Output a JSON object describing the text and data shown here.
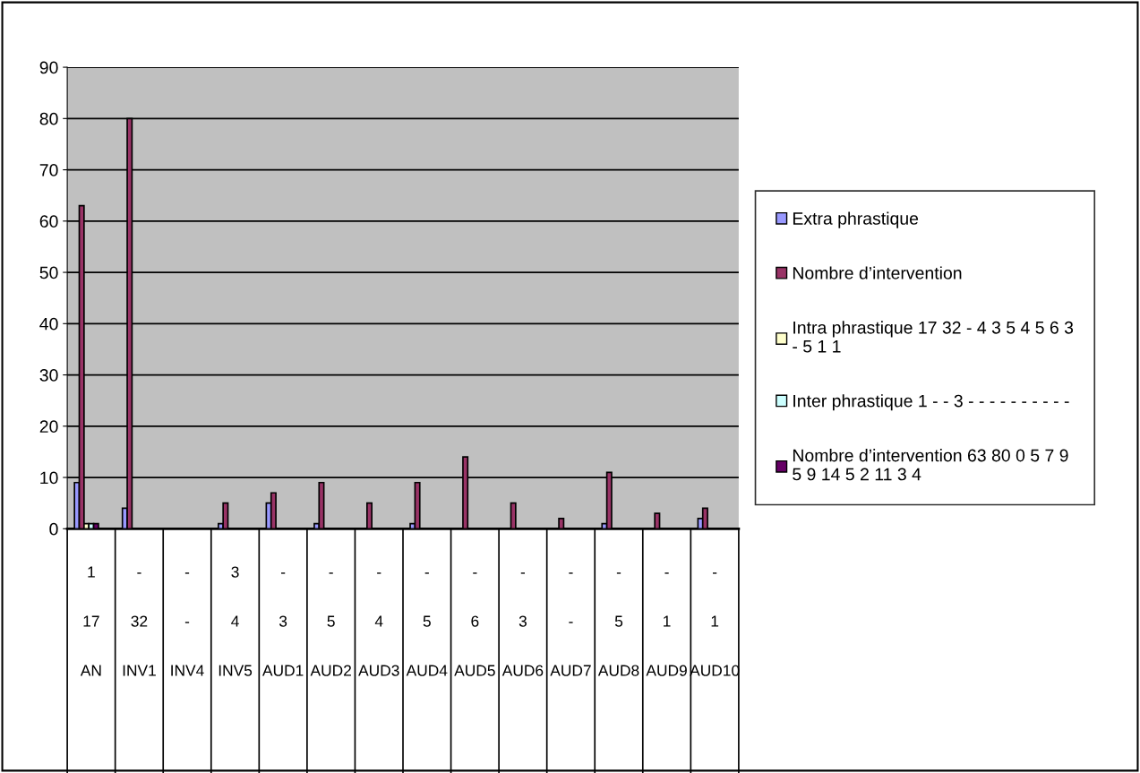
{
  "chart_data": {
    "type": "bar",
    "categories": [
      "1\n\n17\n\nAN",
      "-\n\n32\n\nINV1",
      "-\n\n-\n\nINV4",
      "3\n\n4\n\nINV5",
      "-\n\n3\n\nAUD1",
      "-\n\n5\n\nAUD2",
      "-\n\n4\n\nAUD3",
      "-\n\n5\n\nAUD4",
      "-\n\n6\n\nAUD5",
      "-\n\n3\n\nAUD6",
      "-\n\n-\n\nAUD7",
      "-\n\n5\n\nAUD8",
      "-\n\n1\n\nAUD9",
      "-\n\n1\n\nAUD10"
    ],
    "series": [
      {
        "name": "Extra phrastique",
        "color": "#9999ff",
        "values": [
          9,
          4,
          null,
          1,
          5,
          1,
          null,
          1,
          null,
          null,
          null,
          1,
          null,
          2
        ]
      },
      {
        "name": "Nombre d’intervention",
        "color": "#993366",
        "values": [
          63,
          80,
          null,
          5,
          7,
          9,
          5,
          9,
          14,
          5,
          2,
          11,
          3,
          4
        ]
      },
      {
        "name": "Intra phrastique 17 32 - 4 3 5 4 5 6 3\n- 5 1 1",
        "color": "#ffffcc",
        "values": [
          1,
          null,
          null,
          null,
          null,
          null,
          null,
          null,
          null,
          null,
          null,
          null,
          null,
          null
        ]
      },
      {
        "name": "Inter phrastique 1 - - 3 - - - - - - - - - -",
        "color": "#ccffff",
        "values": [
          1,
          null,
          null,
          null,
          null,
          null,
          null,
          null,
          null,
          null,
          null,
          null,
          null,
          null
        ]
      },
      {
        "name": "Nombre d’intervention 63 80 0 5 7 9\n5 9 14 5 2 11 3 4",
        "color": "#660066",
        "values": [
          1,
          null,
          null,
          null,
          null,
          null,
          null,
          null,
          null,
          null,
          null,
          null,
          null,
          null
        ]
      }
    ],
    "ylim": [
      0,
      90
    ],
    "yticks": [
      0,
      10,
      20,
      30,
      40,
      50,
      60,
      70,
      80,
      90
    ],
    "grid": "y",
    "legend": "right"
  }
}
